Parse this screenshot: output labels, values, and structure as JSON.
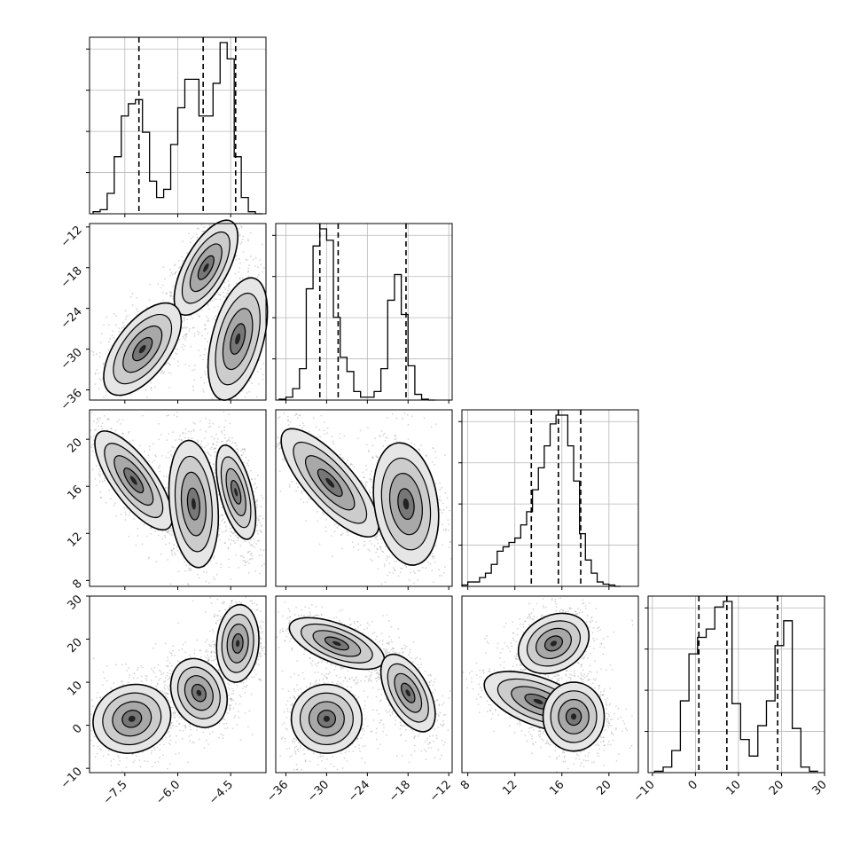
{
  "figure": {
    "type": "corner-plot"
  },
  "params": [
    {
      "ticks": [
        -7.5,
        -6.0,
        -4.5
      ],
      "tick_labels": [
        "−7.5",
        "−6.0",
        "−4.5"
      ],
      "range": [
        -8.5,
        -3.5
      ]
    },
    {
      "ticks": [
        -36,
        -30,
        -24,
        -18,
        -12
      ],
      "tick_labels": [
        "−36",
        "−30",
        "−24",
        "−18",
        "−12"
      ],
      "range": [
        -37.5,
        -11.5
      ]
    },
    {
      "ticks": [
        8,
        12,
        16,
        20
      ],
      "tick_labels": [
        "8",
        "12",
        "16",
        "20"
      ],
      "range": [
        7.5,
        22.5
      ]
    },
    {
      "ticks": [
        -10,
        0,
        10,
        20,
        30
      ],
      "tick_labels": [
        "−10",
        "0",
        "10",
        "20",
        "30"
      ],
      "range": [
        -11,
        30
      ]
    }
  ],
  "chart_data": [
    {
      "type": "histogram",
      "param": 0,
      "bins": [
        -8.3,
        -8.1,
        -7.9,
        -7.7,
        -7.5,
        -7.3,
        -7.1,
        -6.9,
        -6.7,
        -6.5,
        -6.3,
        -6.1,
        -5.9,
        -5.7,
        -5.5,
        -5.3,
        -5.1,
        -4.9,
        -4.7,
        -4.5,
        -4.3,
        -4.1,
        -3.9,
        -3.7
      ],
      "counts": [
        0.5,
        1,
        5,
        14,
        24,
        27,
        28,
        20,
        8,
        4,
        6,
        17,
        26,
        33,
        33,
        24,
        24,
        32,
        42,
        38,
        14,
        4,
        0.5,
        0
      ],
      "quantiles": [
        -7.1,
        -5.28,
        -4.36
      ]
    },
    {
      "type": "histogram",
      "param": 1,
      "bins": [
        -36.5,
        -35.5,
        -34.5,
        -33.5,
        -32.5,
        -31.5,
        -30.5,
        -29.5,
        -28.5,
        -27.5,
        -26.5,
        -25.5,
        -24.5,
        -23.5,
        -22.5,
        -21.5,
        -20.5,
        -19.5,
        -18.5,
        -17.5,
        -16.5,
        -15.5,
        -14.5
      ],
      "counts": [
        0.3,
        1,
        4,
        11,
        39,
        54,
        60,
        56,
        29,
        15,
        10,
        3,
        1,
        1,
        3,
        11,
        35,
        44,
        30,
        12,
        2,
        0.3,
        0
      ],
      "quantiles": [
        -31.0,
        -28.3,
        -18.3
      ]
    },
    {
      "type": "histogram",
      "param": 2,
      "bins": [
        7.75,
        8.25,
        8.75,
        9.25,
        9.75,
        10.25,
        10.75,
        11.25,
        11.75,
        12.25,
        12.75,
        13.25,
        13.75,
        14.25,
        14.75,
        15.25,
        15.75,
        16.25,
        16.75,
        17.25,
        17.75,
        18.25,
        18.75,
        19.25,
        19.75,
        20.25,
        20.75
      ],
      "counts": [
        0.3,
        1,
        1,
        2,
        3,
        5,
        8,
        9,
        10,
        11,
        14,
        17,
        22,
        27,
        32,
        37,
        39,
        39,
        32,
        24,
        12,
        6,
        3,
        1,
        0.5,
        0.3,
        0
      ],
      "quantiles": [
        13.4,
        15.7,
        17.6
      ]
    },
    {
      "type": "histogram",
      "param": 3,
      "bins": [
        -8.5,
        -6.5,
        -4.5,
        -2.5,
        -0.5,
        1.5,
        3.5,
        5.5,
        7.5,
        9.5,
        11.5,
        13.5,
        15.5,
        17.5,
        19.5,
        21.5,
        23.5,
        25.5,
        27.5
      ],
      "counts": [
        0.5,
        2,
        8,
        26,
        43,
        49,
        52,
        60,
        62,
        25,
        12,
        6,
        17,
        26,
        46,
        55,
        16,
        2,
        0.5
      ],
      "quantiles": [
        0.8,
        7.3,
        19.1
      ]
    },
    {
      "type": "contour",
      "params": [
        0,
        1
      ],
      "blobs": [
        {
          "cx": -5.2,
          "cy": -18,
          "sx": 0.45,
          "sy": 3.5,
          "rho": 0.65
        },
        {
          "cx": -7.0,
          "cy": -30,
          "sx": 0.55,
          "sy": 3.4,
          "rho": 0.6
        },
        {
          "cx": -4.3,
          "cy": -28.5,
          "sx": 0.42,
          "sy": 4.5,
          "rho": 0.45
        }
      ]
    },
    {
      "type": "contour",
      "params": [
        0,
        2
      ],
      "blobs": [
        {
          "cx": -7.25,
          "cy": 16.5,
          "sx": 0.55,
          "sy": 2.1,
          "rho": -0.75
        },
        {
          "cx": -5.55,
          "cy": 14.5,
          "sx": 0.35,
          "sy": 2.7,
          "rho": -0.2
        },
        {
          "cx": -4.35,
          "cy": 15.5,
          "sx": 0.28,
          "sy": 2.0,
          "rho": -0.55
        }
      ]
    },
    {
      "type": "contour",
      "params": [
        1,
        2
      ],
      "blobs": [
        {
          "cx": -29.5,
          "cy": 16.3,
          "sx": 3.6,
          "sy": 2.3,
          "rho": -0.78
        },
        {
          "cx": -18.3,
          "cy": 14.5,
          "sx": 2.4,
          "sy": 2.6,
          "rho": -0.2
        }
      ]
    },
    {
      "type": "contour",
      "params": [
        0,
        3
      ],
      "blobs": [
        {
          "cx": -7.3,
          "cy": 1.5,
          "sx": 0.55,
          "sy": 4.0,
          "rho": 0.1
        },
        {
          "cx": -5.4,
          "cy": 7.5,
          "sx": 0.4,
          "sy": 4.0,
          "rho": -0.2
        },
        {
          "cx": -4.3,
          "cy": 19.0,
          "sx": 0.3,
          "sy": 4.5,
          "rho": 0.1
        }
      ]
    },
    {
      "type": "contour",
      "params": [
        1,
        3
      ],
      "blobs": [
        {
          "cx": -30.0,
          "cy": 1.5,
          "sx": 2.6,
          "sy": 4.0,
          "rho": 0.0
        },
        {
          "cx": -28.5,
          "cy": 19.0,
          "sx": 3.5,
          "sy": 3.0,
          "rho": -0.6
        },
        {
          "cx": -18.0,
          "cy": 7.5,
          "sx": 2.0,
          "sy": 4.5,
          "rho": -0.55
        }
      ]
    },
    {
      "type": "contour",
      "params": [
        2,
        3
      ],
      "blobs": [
        {
          "cx": 15.3,
          "cy": 19.0,
          "sx": 1.5,
          "sy": 3.5,
          "rho": 0.25
        },
        {
          "cx": 14.0,
          "cy": 5.5,
          "sx": 2.3,
          "sy": 3.5,
          "rho": -0.55
        },
        {
          "cx": 17.0,
          "cy": 2.0,
          "sx": 1.3,
          "sy": 4.0,
          "rho": 0.0
        }
      ]
    }
  ]
}
